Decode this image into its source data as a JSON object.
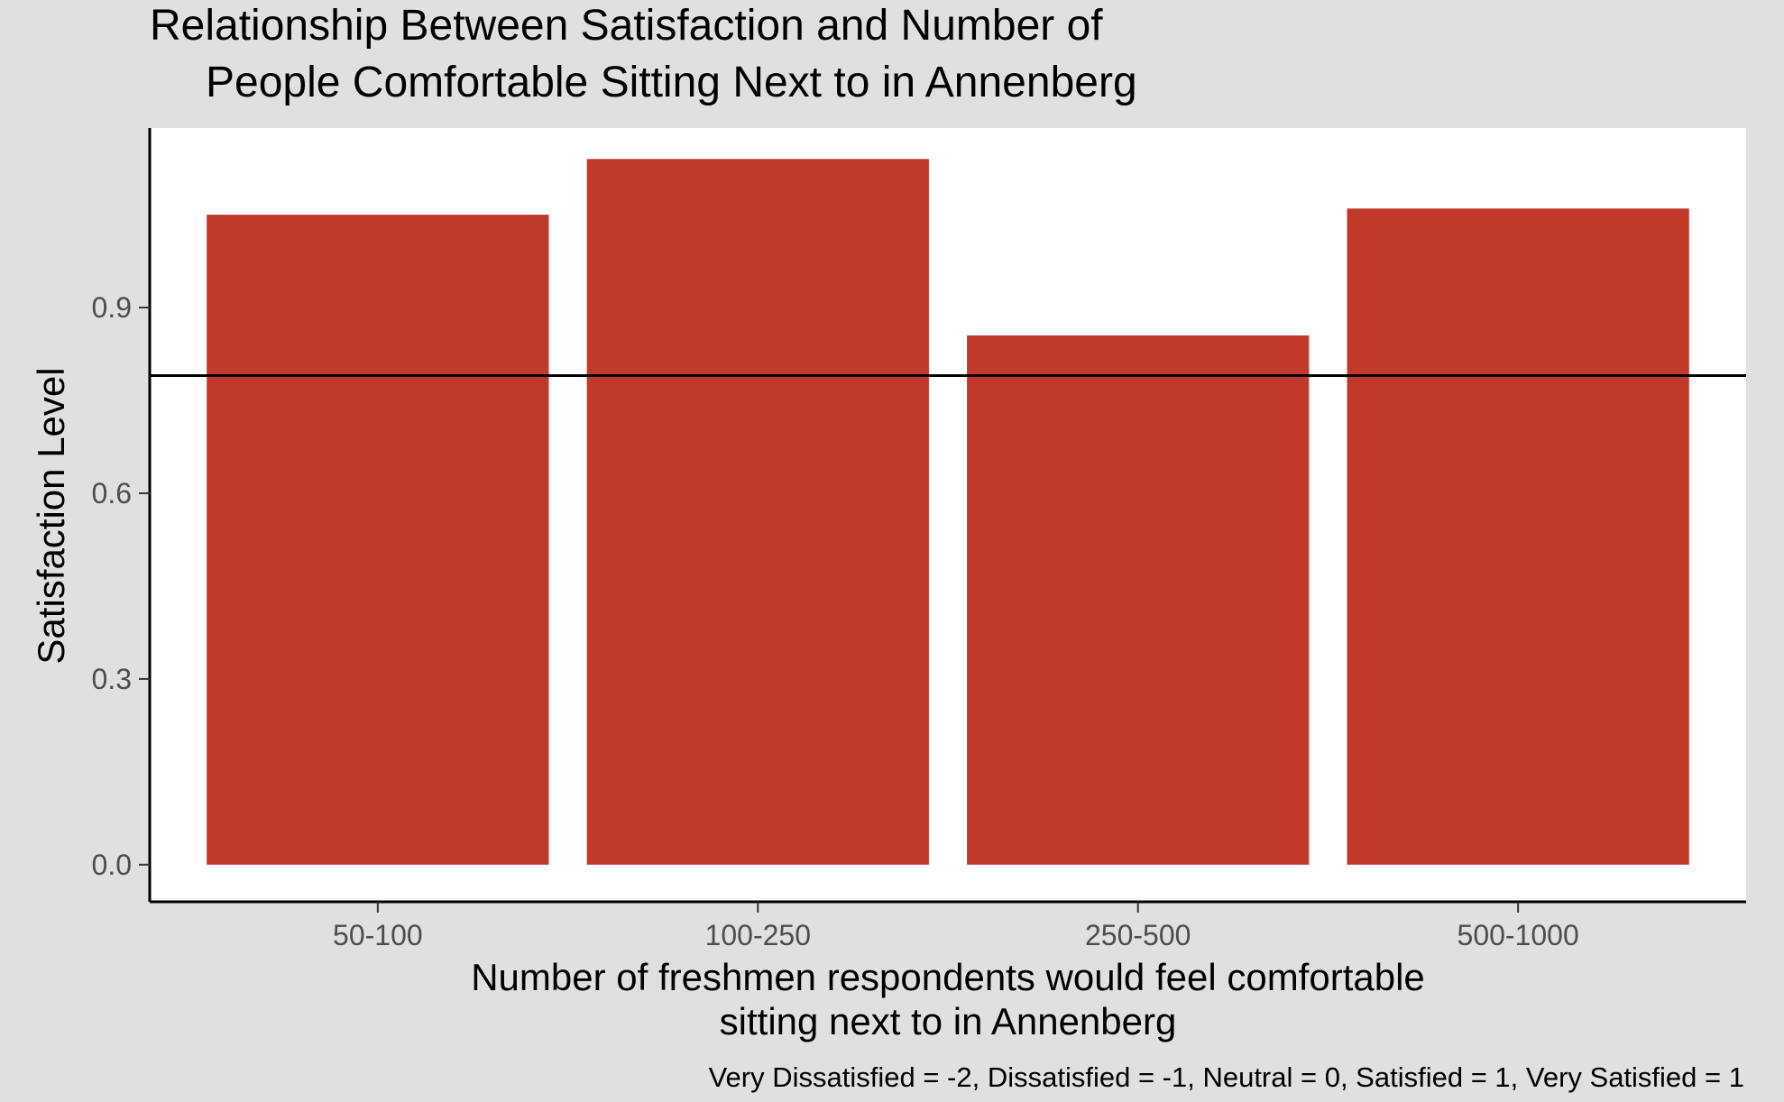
{
  "chart_data": {
    "type": "bar",
    "title_lines": [
      "Relationship Between Satisfaction and Number of",
      "People Comfortable Sitting Next to in Annenberg"
    ],
    "xlabel_lines": [
      "Number of freshmen respondents would feel comfortable",
      "sitting next to in Annenberg"
    ],
    "ylabel": "Satisfaction Level",
    "caption": "Very Dissatisfied = -2, Dissatisfied = -1, Neutral = 0, Satisfied = 1, Very Satisfied = 1",
    "categories": [
      "50-100",
      "100-250",
      "250-500",
      "500-1000"
    ],
    "values": [
      1.05,
      1.14,
      0.855,
      1.06
    ],
    "reference_line": 0.79,
    "ylim": [
      -0.06,
      1.19
    ],
    "yticks": [
      0.0,
      0.3,
      0.6,
      0.9
    ],
    "ytick_labels": [
      "0.0",
      "0.3",
      "0.6",
      "0.9"
    ],
    "bar_color": "#c0392b",
    "reference_line_color": "#000000",
    "panel_background": "#ffffff",
    "plot_background": "#e0e0e0",
    "grid": false,
    "legend": "none"
  }
}
